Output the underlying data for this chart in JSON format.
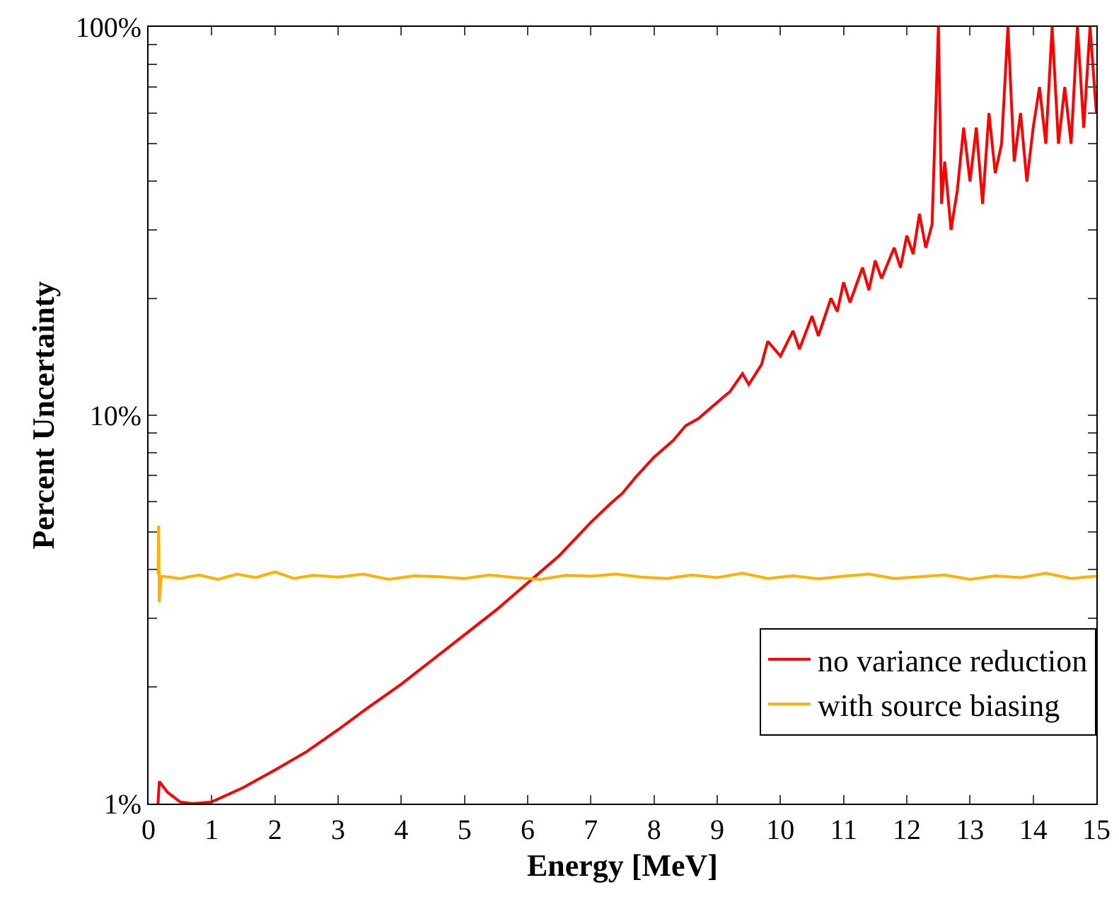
{
  "chart_data": {
    "type": "line",
    "xlabel": "Energy [MeV]",
    "ylabel": "Percent Uncertainty",
    "log": true,
    "grid": false,
    "legend": "bottom right",
    "marker": "none",
    "line_style": "solid",
    "xlim": [
      0,
      15
    ],
    "xticks": [
      0,
      1,
      2,
      3,
      4,
      5,
      6,
      7,
      8,
      9,
      10,
      11,
      12,
      13,
      14,
      15
    ],
    "ylim": [
      1,
      100
    ],
    "yticks": [
      {
        "value": 1,
        "label": "1%"
      },
      {
        "value": 2,
        "label": null
      },
      {
        "value": 3,
        "label": null
      },
      {
        "value": 4,
        "label": null
      },
      {
        "value": 5,
        "label": null
      },
      {
        "value": 6,
        "label": null
      },
      {
        "value": 7,
        "label": null
      },
      {
        "value": 8,
        "label": null
      },
      {
        "value": 9,
        "label": null
      },
      {
        "value": 10,
        "label": "10%"
      },
      {
        "value": 20,
        "label": null
      },
      {
        "value": 30,
        "label": null
      },
      {
        "value": 40,
        "label": null
      },
      {
        "value": 50,
        "label": null
      },
      {
        "value": 60,
        "label": null
      },
      {
        "value": 70,
        "label": null
      },
      {
        "value": 80,
        "label": null
      },
      {
        "value": 90,
        "label": null
      },
      {
        "value": 100,
        "label": "100%"
      }
    ],
    "series": [
      {
        "name": "no variance reduction",
        "color": "#ff0000",
        "x": [
          0.15,
          0.17,
          0.3,
          0.5,
          0.7,
          1.0,
          1.5,
          2,
          2.5,
          3,
          3.5,
          4,
          4.5,
          5,
          5.5,
          6,
          6.5,
          7,
          7.3,
          7.5,
          7.7,
          8,
          8.3,
          8.5,
          8.7,
          9,
          9.2,
          9.4,
          9.5,
          9.7,
          9.8,
          10,
          10.2,
          10.3,
          10.5,
          10.6,
          10.8,
          10.9,
          11,
          11.1,
          11.3,
          11.4,
          11.5,
          11.6,
          11.8,
          11.9,
          12,
          12.1,
          12.2,
          12.3,
          12.4,
          12.5,
          12.55,
          12.6,
          12.7,
          12.8,
          12.9,
          13.0,
          13.1,
          13.2,
          13.3,
          13.4,
          13.5,
          13.6,
          13.7,
          13.8,
          13.9,
          14.0,
          14.1,
          14.2,
          14.3,
          14.4,
          14.5,
          14.6,
          14.7,
          14.8,
          14.9,
          15.0
        ],
        "values": [
          1.0,
          1.14,
          1.07,
          1.01,
          1.0,
          1.01,
          1.1,
          1.22,
          1.36,
          1.55,
          1.78,
          2.03,
          2.35,
          2.72,
          3.15,
          3.7,
          4.35,
          5.3,
          5.9,
          6.3,
          6.9,
          7.8,
          8.6,
          9.4,
          9.8,
          10.8,
          11.5,
          12.8,
          12,
          13.5,
          15.5,
          14.2,
          16.5,
          14.8,
          18,
          16,
          20,
          18.5,
          22,
          19.5,
          24,
          21,
          25,
          22.5,
          27,
          24,
          29,
          26,
          33,
          27,
          31,
          100,
          35,
          45,
          30,
          38,
          55,
          40,
          55,
          35,
          60,
          42,
          50,
          100,
          45,
          60,
          40,
          55,
          70,
          50,
          100,
          50,
          70,
          50,
          100,
          55,
          100,
          60
        ]
      },
      {
        "name": "with source biasing",
        "color": "#ffb000",
        "x": [
          0.15,
          0.16,
          0.17,
          0.2,
          0.5,
          0.8,
          1.1,
          1.4,
          1.7,
          2.0,
          2.3,
          2.6,
          3.0,
          3.4,
          3.8,
          4.2,
          4.6,
          5.0,
          5.4,
          5.8,
          6.2,
          6.6,
          7.0,
          7.4,
          7.8,
          8.2,
          8.6,
          9.0,
          9.4,
          9.8,
          10.2,
          10.6,
          11.0,
          11.4,
          11.8,
          12.2,
          12.6,
          13.0,
          13.4,
          13.8,
          14.2,
          14.6,
          15.0
        ],
        "values": [
          3.9,
          5.2,
          3.3,
          3.85,
          3.8,
          3.88,
          3.78,
          3.9,
          3.82,
          3.95,
          3.8,
          3.87,
          3.83,
          3.9,
          3.78,
          3.86,
          3.84,
          3.8,
          3.88,
          3.82,
          3.78,
          3.87,
          3.85,
          3.9,
          3.83,
          3.8,
          3.88,
          3.82,
          3.92,
          3.8,
          3.86,
          3.79,
          3.85,
          3.9,
          3.8,
          3.84,
          3.88,
          3.78,
          3.86,
          3.82,
          3.92,
          3.8,
          3.85
        ]
      }
    ]
  }
}
